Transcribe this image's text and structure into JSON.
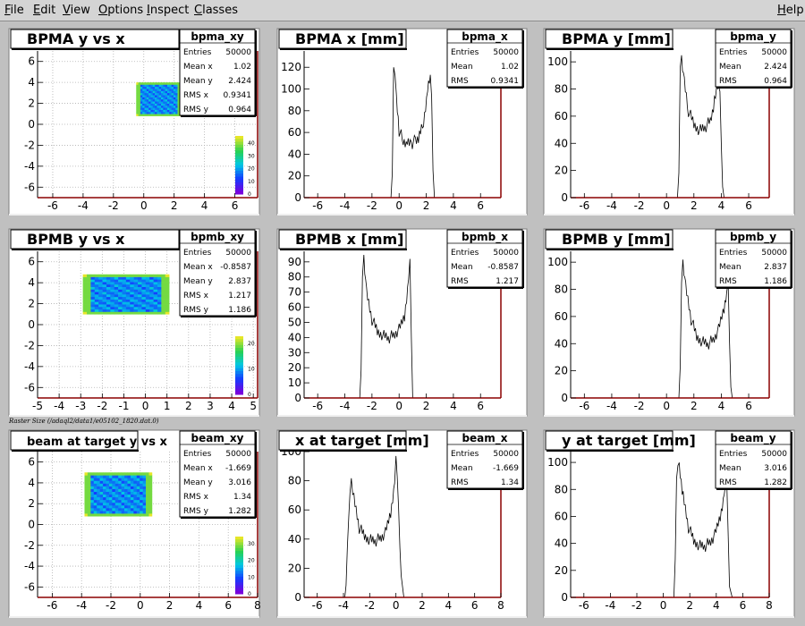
{
  "menu": {
    "file": "File",
    "edit": "Edit",
    "view": "View",
    "options": "Options",
    "inspect": "Inspect",
    "classes": "Classes",
    "help": "Help"
  },
  "caption": "Raster Size (/adaql2/data1/e05102_1820.dat.0)",
  "colors": {
    "pad_bg": "#ffffff",
    "canvas_bg": "#c0c0c0",
    "axis": "#8b0000",
    "hist": "#000000"
  },
  "stat_labels": {
    "entries": "Entries",
    "mean": "Mean",
    "rms": "RMS",
    "mean_x": "Mean x",
    "mean_y": "Mean y",
    "rms_x": "RMS x",
    "rms_y": "RMS y"
  },
  "palette_labels": {
    "bpma_xy": [
      "40",
      "30",
      "20",
      "10",
      "0"
    ],
    "bpmb_xy": [
      "20",
      "10",
      "0"
    ],
    "beam_xy": [
      "30",
      "20",
      "10",
      "0"
    ]
  },
  "chart_data": [
    {
      "id": "bpma_xy",
      "type": "heatmap",
      "title": "BPMA y vs x",
      "xlim": [
        -7,
        7.5
      ],
      "ylim": [
        -7,
        7
      ],
      "x_ticks": [
        "-6",
        "-4",
        "-2",
        "0",
        "2",
        "4",
        "6"
      ],
      "y_ticks": [
        "-6",
        "-4",
        "-2",
        "0",
        "2",
        "4",
        "6"
      ],
      "x_tick_values": [
        -6,
        -4,
        -2,
        0,
        2,
        4,
        6
      ],
      "y_tick_values": [
        -6,
        -4,
        -2,
        0,
        2,
        4,
        6
      ],
      "grid": true,
      "legend": "top-right",
      "region": {
        "x": [
          -0.5,
          2.5
        ],
        "y": [
          0.8,
          4.0
        ]
      },
      "stats": {
        "name": "bpma_xy",
        "entries": "50000",
        "mean_x": "1.02",
        "mean_y": "2.424",
        "rms_x": "0.9341",
        "rms_y": "0.964"
      }
    },
    {
      "id": "bpma_x",
      "type": "line",
      "title": "BPMA x [mm]",
      "xlim": [
        -7,
        7.5
      ],
      "ylim": [
        0,
        135
      ],
      "x_ticks": [
        "-6",
        "-4",
        "-2",
        "0",
        "2",
        "4",
        "6"
      ],
      "y_ticks": [
        "0",
        "20",
        "40",
        "60",
        "80",
        "100",
        "120"
      ],
      "x_tick_values": [
        -6,
        -4,
        -2,
        0,
        2,
        4,
        6
      ],
      "y_tick_values": [
        0,
        20,
        40,
        60,
        80,
        100,
        120
      ],
      "grid": false,
      "legend": "top-right",
      "x": [
        -7,
        -0.6,
        -0.5,
        -0.4,
        -0.3,
        -0.2,
        0.0,
        0.3,
        0.6,
        0.9,
        1.2,
        1.5,
        1.8,
        2.1,
        2.3,
        2.4,
        2.5,
        2.6,
        7.5
      ],
      "y": [
        0,
        0,
        25,
        120,
        110,
        90,
        62,
        52,
        50,
        50,
        52,
        56,
        70,
        100,
        113,
        90,
        25,
        0,
        0
      ],
      "stats": {
        "name": "bpma_x",
        "entries": "50000",
        "mean": "1.02",
        "rms": "0.9341"
      }
    },
    {
      "id": "bpma_y",
      "type": "line",
      "title": "BPMA y [mm]",
      "xlim": [
        -7,
        7.5
      ],
      "ylim": [
        0,
        108
      ],
      "x_ticks": [
        "-6",
        "-4",
        "-2",
        "0",
        "2",
        "4",
        "6"
      ],
      "y_ticks": [
        "0",
        "20",
        "40",
        "60",
        "80",
        "100"
      ],
      "x_tick_values": [
        -6,
        -4,
        -2,
        0,
        2,
        4,
        6
      ],
      "y_tick_values": [
        0,
        20,
        40,
        60,
        80,
        100
      ],
      "grid": false,
      "legend": "top-right",
      "x": [
        -7,
        0.8,
        0.9,
        1.0,
        1.1,
        1.3,
        1.6,
        2.0,
        2.4,
        2.8,
        3.2,
        3.5,
        3.8,
        3.9,
        4.0,
        4.1,
        4.2,
        7.5
      ],
      "y": [
        0,
        0,
        20,
        96,
        103,
        85,
        64,
        54,
        50,
        52,
        56,
        70,
        86,
        80,
        40,
        8,
        0,
        0
      ],
      "stats": {
        "name": "bpma_y",
        "entries": "50000",
        "mean": "2.424",
        "rms": "0.964"
      }
    },
    {
      "id": "bpmb_xy",
      "type": "heatmap",
      "title": "BPMB y vs x",
      "xlim": [
        -5,
        5.2
      ],
      "ylim": [
        -7,
        7
      ],
      "x_ticks": [
        "-5",
        "-4",
        "-3",
        "-2",
        "-1",
        "0",
        "1",
        "2",
        "3",
        "4",
        "5"
      ],
      "y_ticks": [
        "-6",
        "-4",
        "-2",
        "0",
        "2",
        "4",
        "6"
      ],
      "x_tick_values": [
        -5,
        -4,
        -3,
        -2,
        -1,
        0,
        1,
        2,
        3,
        4,
        5
      ],
      "y_tick_values": [
        -6,
        -4,
        -2,
        0,
        2,
        4,
        6
      ],
      "grid": true,
      "legend": "top-right",
      "region": {
        "x": [
          -2.9,
          1.1
        ],
        "y": [
          1.0,
          4.8
        ]
      },
      "stats": {
        "name": "bpmb_xy",
        "entries": "50000",
        "mean_x": "-0.8587",
        "mean_y": "2.837",
        "rms_x": "1.217",
        "rms_y": "1.186"
      }
    },
    {
      "id": "bpmb_x",
      "type": "line",
      "title": "BPMB x [mm]",
      "xlim": [
        -7,
        7.5
      ],
      "ylim": [
        0,
        97
      ],
      "x_ticks": [
        "-6",
        "-4",
        "-2",
        "0",
        "2",
        "4",
        "6"
      ],
      "y_ticks": [
        "0",
        "10",
        "20",
        "30",
        "40",
        "50",
        "60",
        "70",
        "80",
        "90"
      ],
      "x_tick_values": [
        -6,
        -4,
        -2,
        0,
        2,
        4,
        6
      ],
      "y_tick_values": [
        0,
        10,
        20,
        30,
        40,
        50,
        60,
        70,
        80,
        90
      ],
      "grid": false,
      "legend": "top-right",
      "x": [
        -7,
        -2.9,
        -2.8,
        -2.7,
        -2.6,
        -2.4,
        -2.0,
        -1.6,
        -1.2,
        -0.8,
        -0.4,
        0.0,
        0.4,
        0.7,
        0.8,
        0.9,
        1.0,
        7.5
      ],
      "y": [
        0,
        0,
        20,
        80,
        93,
        70,
        52,
        44,
        42,
        40,
        41,
        45,
        54,
        80,
        92,
        40,
        0,
        0
      ],
      "stats": {
        "name": "bpmb_x",
        "entries": "50000",
        "mean": "-0.8587",
        "rms": "1.217"
      }
    },
    {
      "id": "bpmb_y",
      "type": "line",
      "title": "BPMB y [mm]",
      "xlim": [
        -7,
        7.5
      ],
      "ylim": [
        0,
        108
      ],
      "x_ticks": [
        "-6",
        "-4",
        "-2",
        "0",
        "2",
        "4",
        "6"
      ],
      "y_ticks": [
        "0",
        "20",
        "40",
        "60",
        "80",
        "100"
      ],
      "x_tick_values": [
        -6,
        -4,
        -2,
        0,
        2,
        4,
        6
      ],
      "y_tick_values": [
        0,
        20,
        40,
        60,
        80,
        100
      ],
      "grid": false,
      "legend": "top-right",
      "x": [
        -7,
        0.9,
        1.0,
        1.1,
        1.2,
        1.4,
        1.8,
        2.2,
        2.6,
        3.0,
        3.4,
        3.8,
        4.2,
        4.4,
        4.5,
        4.6,
        4.7,
        4.8,
        7.5
      ],
      "y": [
        0,
        0,
        25,
        85,
        100,
        82,
        58,
        45,
        42,
        40,
        42,
        50,
        66,
        80,
        85,
        40,
        8,
        0,
        0
      ],
      "stats": {
        "name": "bpmb_y",
        "entries": "50000",
        "mean": "2.837",
        "rms": "1.186"
      }
    },
    {
      "id": "beam_xy",
      "type": "heatmap",
      "title": "beam at target y vs x",
      "xlim": [
        -7,
        8
      ],
      "ylim": [
        -7,
        7
      ],
      "x_ticks": [
        "-6",
        "-4",
        "-2",
        "0",
        "2",
        "4",
        "6",
        "8"
      ],
      "y_ticks": [
        "-6",
        "-4",
        "-2",
        "0",
        "2",
        "4",
        "6"
      ],
      "x_tick_values": [
        -6,
        -4,
        -2,
        0,
        2,
        4,
        6,
        8
      ],
      "y_tick_values": [
        -6,
        -4,
        -2,
        0,
        2,
        4,
        6
      ],
      "grid": true,
      "legend": "top-right",
      "region": {
        "x": [
          -3.8,
          0.8
        ],
        "y": [
          0.8,
          5.0
        ]
      },
      "stats": {
        "name": "beam_xy",
        "entries": "50000",
        "mean_x": "-1.669",
        "mean_y": "3.016",
        "rms_x": "1.34",
        "rms_y": "1.282"
      }
    },
    {
      "id": "beam_x",
      "type": "line",
      "title": "x at target [mm]",
      "xlim": [
        -7,
        8
      ],
      "ylim": [
        0,
        100
      ],
      "x_ticks": [
        "-6",
        "-4",
        "-2",
        "0",
        "2",
        "4",
        "6",
        "8"
      ],
      "y_ticks": [
        "0",
        "20",
        "40",
        "60",
        "80",
        "100"
      ],
      "x_tick_values": [
        -6,
        -4,
        -2,
        0,
        2,
        4,
        6,
        8
      ],
      "y_tick_values": [
        0,
        20,
        40,
        60,
        80,
        100
      ],
      "grid": false,
      "legend": "top-right",
      "x": [
        -7,
        -3.9,
        -3.8,
        -3.6,
        -3.4,
        -3.2,
        -2.8,
        -2.4,
        -2.0,
        -1.6,
        -1.2,
        -0.8,
        -0.4,
        -0.1,
        0.0,
        0.2,
        0.4,
        0.6,
        8
      ],
      "y": [
        0,
        0,
        10,
        55,
        80,
        68,
        48,
        42,
        40,
        39,
        40,
        44,
        58,
        80,
        97,
        60,
        15,
        0,
        0
      ],
      "stats": {
        "name": "beam_x",
        "entries": "50000",
        "mean": "-1.669",
        "rms": "1.34"
      }
    },
    {
      "id": "beam_y",
      "type": "line",
      "title": "y at target [mm]",
      "xlim": [
        -7,
        8
      ],
      "ylim": [
        0,
        108
      ],
      "x_ticks": [
        "-6",
        "-4",
        "-2",
        "0",
        "2",
        "4",
        "6",
        "8"
      ],
      "y_ticks": [
        "0",
        "20",
        "40",
        "60",
        "80",
        "100"
      ],
      "x_tick_values": [
        -6,
        -4,
        -2,
        0,
        2,
        4,
        6,
        8
      ],
      "y_tick_values": [
        0,
        20,
        40,
        60,
        80,
        100
      ],
      "grid": false,
      "legend": "top-right",
      "x": [
        -7,
        0.8,
        0.9,
        1.0,
        1.2,
        1.5,
        1.9,
        2.3,
        2.7,
        3.1,
        3.5,
        3.9,
        4.3,
        4.6,
        4.8,
        4.9,
        5.0,
        5.2,
        8
      ],
      "y": [
        0,
        0,
        30,
        88,
        98,
        75,
        52,
        42,
        39,
        38,
        40,
        46,
        60,
        78,
        84,
        45,
        8,
        0,
        0
      ],
      "stats": {
        "name": "beam_y",
        "entries": "50000",
        "mean": "3.016",
        "rms": "1.282"
      }
    }
  ]
}
